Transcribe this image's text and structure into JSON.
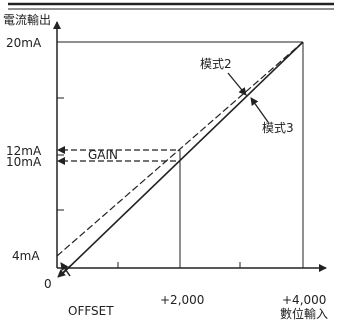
{
  "diagram": {
    "y_axis_title": "電流輸出",
    "x_axis_title": "數位輸入",
    "origin_label": "0",
    "y_labels": {
      "top": "20mA",
      "gain_a": "12mA",
      "gain_b": "10mA",
      "bottom": "4mA"
    },
    "x_labels": {
      "mid": "+2,000",
      "end": "+4,000"
    },
    "annotations": {
      "gain": "GAIN",
      "offset": "OFFSET",
      "mode2": "模式2",
      "mode3": "模式3"
    },
    "colors": {
      "line": "#222222",
      "background": "#ffffff"
    }
  }
}
